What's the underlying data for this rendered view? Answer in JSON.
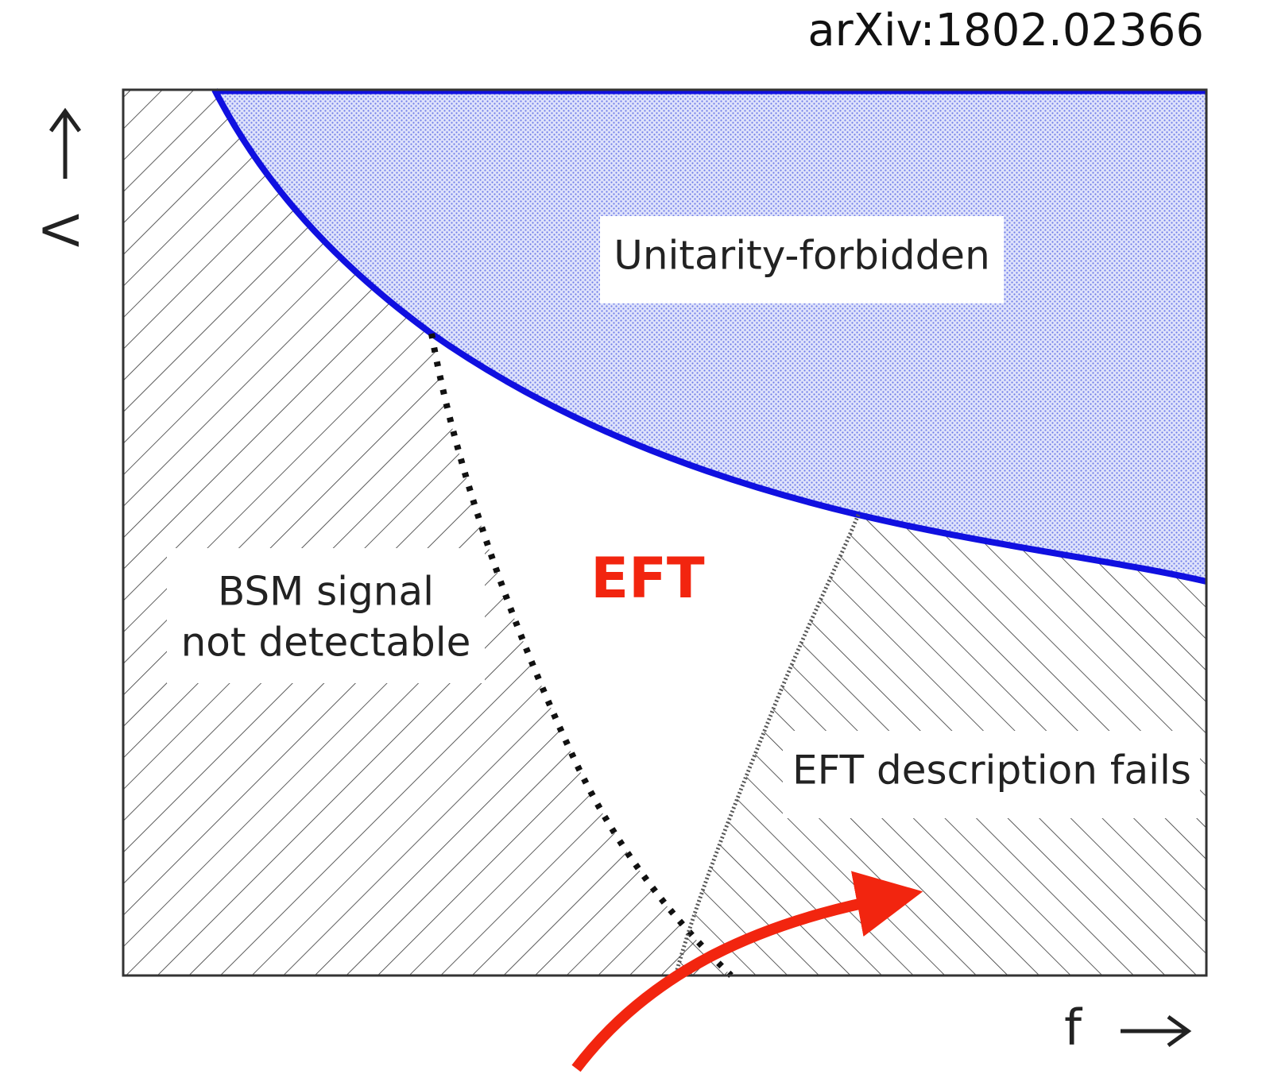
{
  "header": {
    "reference": "arXiv:1802.02366"
  },
  "axes": {
    "x_label": "f",
    "y_label": "Λ"
  },
  "regions": {
    "unitarity": "Unitarity-forbidden",
    "bsm": [
      "BSM signal",
      "not detectable"
    ],
    "eft": "EFT",
    "eft_fails": "EFT description fails"
  }
}
